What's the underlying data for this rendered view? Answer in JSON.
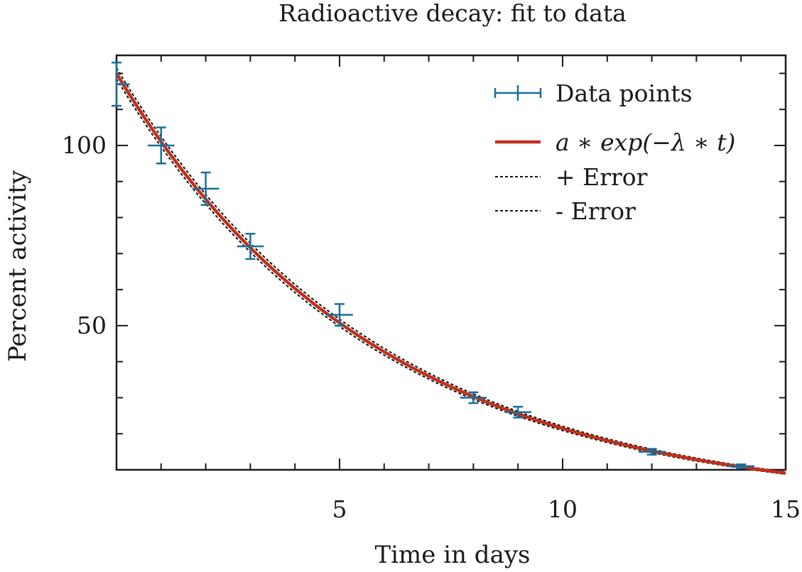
{
  "chart_data": {
    "type": "line",
    "title": "Radioactive decay: fit to data",
    "xlabel": "Time in days",
    "ylabel": "Percent activity",
    "xlim": [
      0,
      15
    ],
    "ylim": [
      10,
      125
    ],
    "xticks": [
      5,
      10,
      15
    ],
    "xtick_labels": [
      "5",
      "10",
      "15"
    ],
    "yticks": [
      50,
      100
    ],
    "ytick_labels": [
      "50",
      "100"
    ],
    "grid": false,
    "legend_position": "top-right",
    "colors": {
      "data": "#1a6e99",
      "fit": "#c0301c",
      "error": "#111111",
      "axes": "#1a1a1a"
    },
    "series": [
      {
        "name": "Data points",
        "kind": "errorbar",
        "x": [
          0,
          1,
          2,
          3,
          5,
          8,
          9,
          12,
          14
        ],
        "y": [
          117,
          100,
          88,
          72,
          53,
          30,
          26,
          15,
          11
        ],
        "xerr": [
          0.3,
          0.3,
          0.3,
          0.3,
          0.3,
          0.3,
          0.3,
          0.3,
          0.3
        ],
        "yerr": [
          6,
          5,
          4.5,
          3.5,
          3,
          1.5,
          1.5,
          0.8,
          0.5
        ]
      },
      {
        "name": "a ∗ exp(−λ ∗ t)",
        "kind": "line",
        "a": 120,
        "lambda": 0.172
      },
      {
        "name": "+ Error",
        "kind": "dashed",
        "a": 121.5,
        "lambda": 0.1705
      },
      {
        "name": "- Error",
        "kind": "dashed",
        "a": 118.5,
        "lambda": 0.1735
      }
    ]
  }
}
